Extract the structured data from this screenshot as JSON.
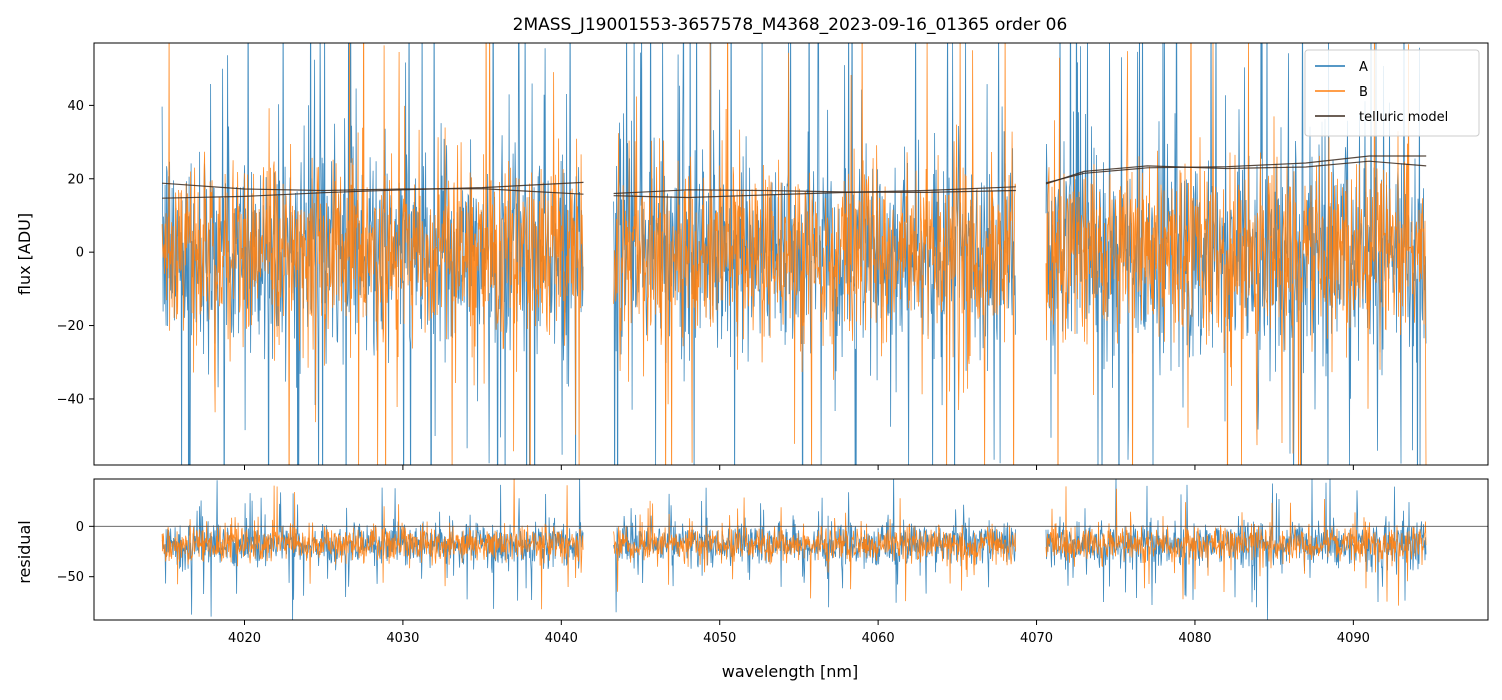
{
  "chart_data": [
    {
      "type": "line",
      "panel": "flux",
      "title": "2MASS_J19001553-3657578_M4368_2023-09-16_01365  order 06",
      "ylabel": "flux [ADU]",
      "xlabel": "",
      "xlim": [
        4010.5,
        4098.5
      ],
      "ylim": [
        -58,
        57
      ],
      "yticks": [
        40,
        20,
        0,
        -20,
        -40
      ],
      "ytick_labels": [
        "40",
        "20",
        "0",
        "−20",
        "−40"
      ],
      "grid": false,
      "legend_position": "top-right",
      "segments": [
        [
          4014.8,
          4041.4
        ],
        [
          4043.3,
          4068.7
        ],
        [
          4070.6,
          4094.6
        ]
      ],
      "series": [
        {
          "name": "A",
          "color": "#1f77b4",
          "center": 0,
          "noise_amplitude": 26,
          "spikes": 60
        },
        {
          "name": "B",
          "color": "#ff7f0e",
          "center": 0,
          "noise_amplitude": 23,
          "spikes": 30
        },
        {
          "name": "telluric model",
          "color": "#3b2a1e",
          "lines": [
            {
              "x": [
                4014.8,
                4020,
                4025,
                4030,
                4035,
                4041.4,
                4043.3,
                4048,
                4053,
                4058,
                4063,
                4068.7,
                4070.6,
                4073,
                4077,
                4082,
                4087,
                4091,
                4094.6
              ],
              "y": [
                18.8,
                17.2,
                16.8,
                17.2,
                17.3,
                15.8,
                16.0,
                17.0,
                16.8,
                16.4,
                16.3,
                16.8,
                18.6,
                22.0,
                23.5,
                22.8,
                23.2,
                24.8,
                23.5
              ]
            },
            {
              "x": [
                4014.8,
                4020,
                4025,
                4030,
                4035,
                4041.4,
                4043.3,
                4048,
                4053,
                4058,
                4063,
                4068.7,
                4070.6,
                4073,
                4077,
                4082,
                4087,
                4091,
                4094.6
              ],
              "y": [
                14.7,
                15.2,
                16.2,
                17.0,
                17.6,
                19.0,
                15.4,
                14.9,
                15.6,
                16.3,
                16.8,
                17.8,
                18.9,
                21.5,
                23.0,
                23.3,
                24.3,
                26.2,
                26.2
              ]
            }
          ]
        }
      ]
    },
    {
      "type": "line",
      "panel": "residual",
      "ylabel": "residual",
      "xlabel": "wavelength [nm]",
      "xlim": [
        4010.5,
        4098.5
      ],
      "ylim": [
        -93,
        47
      ],
      "yticks": [
        0,
        -50
      ],
      "ytick_labels": [
        "0",
        "−50"
      ],
      "xticks": [
        4020,
        4030,
        4040,
        4050,
        4060,
        4070,
        4080,
        4090
      ],
      "xtick_labels": [
        "4020",
        "4030",
        "4040",
        "4050",
        "4060",
        "4070",
        "4080",
        "4090"
      ],
      "zero_line": 0,
      "grid": false,
      "series": [
        {
          "name": "A",
          "color": "#1f77b4",
          "center": -18,
          "noise_amplitude": 20,
          "spikes": 40
        },
        {
          "name": "B",
          "color": "#ff7f0e",
          "center": -18,
          "noise_amplitude": 17,
          "spikes": 20
        }
      ]
    }
  ]
}
